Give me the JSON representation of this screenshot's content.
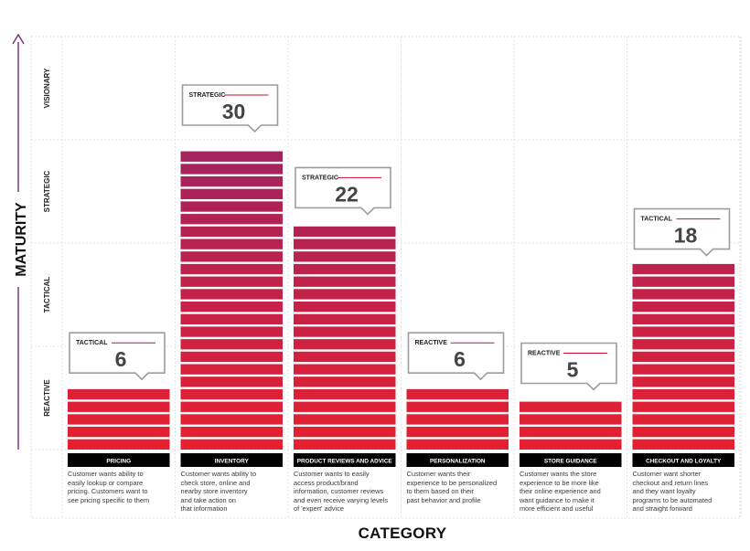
{
  "chart_data": {
    "type": "bar",
    "ylabel": "MATURITY",
    "xlabel": "CATEGORY",
    "y_levels": [
      "REACTIVE",
      "TACTICAL",
      "STRATEGIC",
      "VISIONARY"
    ],
    "ylim": [
      0,
      40
    ],
    "categories": [
      "PRICING",
      "INVENTORY",
      "PRODUCT REVIEWS AND ADVICE",
      "PERSONALIZATION",
      "STORE GUIDANCE",
      "CHECKOUT AND LOYALTY"
    ],
    "values": [
      6,
      30,
      22,
      6,
      5,
      18
    ],
    "levels": [
      "TACTICAL",
      "STRATEGIC",
      "STRATEGIC",
      "REACTIVE",
      "REACTIVE",
      "TACTICAL"
    ],
    "descriptions": [
      [
        "Customer wants ability to",
        "easily lookup or compare",
        "pricing. Customers want to",
        "see pricing specific to them"
      ],
      [
        "Customer wants ability to",
        "check store, online and",
        "nearby store inventory",
        "and take action on",
        "that information"
      ],
      [
        "Customer wants to easily",
        "access product/brand",
        "information, customer reviews",
        "and even receive varying levels",
        "of 'expert' advice"
      ],
      [
        "Customer wants their",
        "experience to be personalized",
        "to them based on their",
        "past behavior and profile"
      ],
      [
        "Customer wants the store",
        "experience to be more like",
        "their online experience and",
        "want guidance to make it",
        "more efficient and useful"
      ],
      [
        "Customer want shorter",
        "checkout and return lines",
        "and they want loyalty",
        "programs to be automated",
        "and straight forward"
      ]
    ],
    "colors": {
      "bottom": "#e8202e",
      "top": "#8a2470",
      "accent": "#c8102e",
      "label_bg": "#000000"
    }
  }
}
